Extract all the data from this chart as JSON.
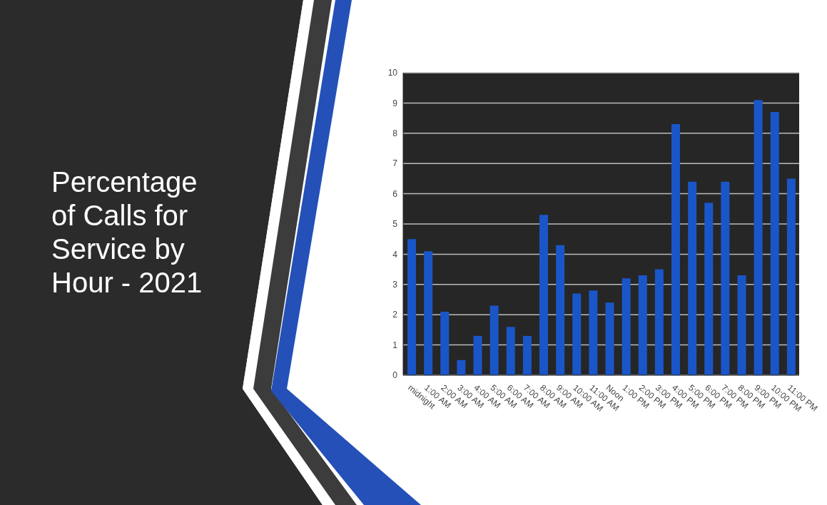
{
  "chart_data": {
    "type": "bar",
    "title": "Percentage of Calls for Service by Hour - 2021",
    "categories": [
      "midnight",
      "1:00 AM",
      "2:00 AM",
      "3:00 AM",
      "4:00 AM",
      "5:00 AM",
      "6:00 AM",
      "7:00 AM",
      "8:00 AM",
      "9:00 AM",
      "10:00 AM",
      "11:00 AM",
      "Noon",
      "1:00 PM",
      "2:00 PM",
      "3:00 PM",
      "4:00 PM",
      "5:00 PM",
      "6:00 PM",
      "7:00 PM",
      "8:00 PM",
      "9:00 PM",
      "10:00 PM",
      "11:00 PM"
    ],
    "values": [
      4.5,
      4.1,
      2.1,
      0.5,
      1.3,
      2.3,
      1.6,
      1.3,
      5.3,
      4.3,
      2.7,
      2.8,
      2.4,
      3.2,
      3.3,
      3.5,
      8.3,
      6.4,
      5.7,
      6.4,
      3.3,
      9.1,
      8.7,
      6.5
    ],
    "color": "#1a56c8",
    "ylim": [
      0,
      10
    ],
    "yticks": [
      0,
      1,
      2,
      3,
      4,
      5,
      6,
      7,
      8,
      9,
      10
    ],
    "grid": "y"
  }
}
